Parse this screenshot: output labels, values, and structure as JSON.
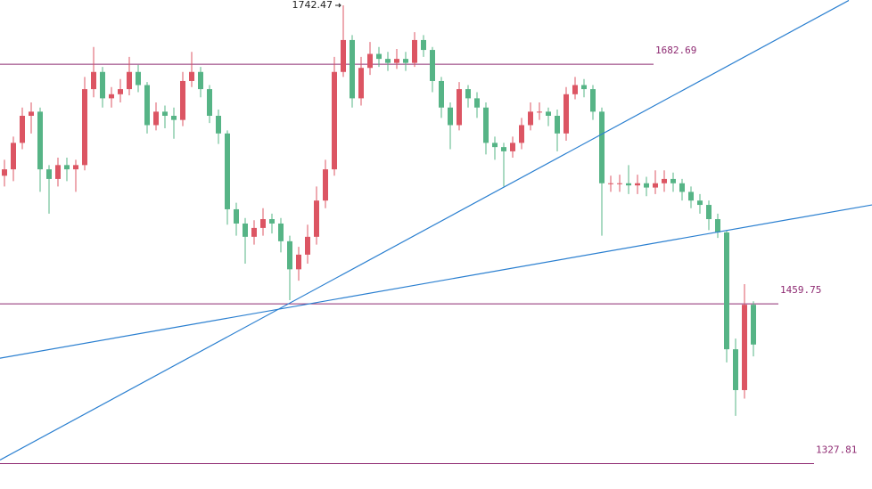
{
  "chart_data": {
    "type": "candlestick",
    "log_scale": true,
    "ylim": [
      1308,
      1748
    ],
    "up_color": "#dc5563",
    "down_color": "#56b486",
    "open": [
      1575,
      1581,
      1606,
      1632,
      1636,
      1581,
      1572,
      1585,
      1581,
      1585,
      1658,
      1675,
      1649,
      1653,
      1658,
      1675,
      1662,
      1623,
      1636,
      1632,
      1628,
      1666,
      1675,
      1658,
      1632,
      1615,
      1544,
      1531,
      1519,
      1527,
      1535,
      1531,
      1515,
      1490,
      1503,
      1519,
      1552,
      1581,
      1675,
      1707,
      1649,
      1679,
      1693,
      1688,
      1684,
      1688,
      1684,
      1707,
      1697,
      1666,
      1640,
      1623,
      1658,
      1649,
      1640,
      1606,
      1602,
      1598,
      1606,
      1623,
      1636,
      1636,
      1632,
      1615,
      1653,
      1662,
      1658,
      1636,
      1568,
      1568,
      1568,
      1566,
      1568,
      1564,
      1568,
      1572,
      1568,
      1560,
      1552,
      1548,
      1535,
      1523,
      1421,
      1387,
      1459
    ],
    "high": [
      1590,
      1612,
      1640,
      1645,
      1640,
      1585,
      1592,
      1592,
      1590,
      1670,
      1700,
      1680,
      1660,
      1668,
      1690,
      1682,
      1665,
      1645,
      1642,
      1640,
      1675,
      1695,
      1680,
      1662,
      1638,
      1618,
      1550,
      1536,
      1534,
      1545,
      1540,
      1536,
      1520,
      1510,
      1530,
      1565,
      1590,
      1690,
      1742.47,
      1712,
      1690,
      1705,
      1700,
      1695,
      1698,
      1695,
      1715,
      1712,
      1700,
      1670,
      1645,
      1665,
      1662,
      1655,
      1645,
      1612,
      1606,
      1612,
      1630,
      1645,
      1645,
      1640,
      1638,
      1660,
      1670,
      1668,
      1662,
      1640,
      1575,
      1576,
      1585,
      1576,
      1574,
      1580,
      1580,
      1578,
      1572,
      1565,
      1558,
      1552,
      1540,
      1525,
      1430,
      1477,
      1462
    ],
    "low": [
      1565,
      1570,
      1600,
      1615,
      1560,
      1540,
      1565,
      1570,
      1560,
      1580,
      1650,
      1640,
      1640,
      1645,
      1652,
      1655,
      1615,
      1618,
      1620,
      1610,
      1622,
      1660,
      1650,
      1625,
      1605,
      1530,
      1520,
      1495,
      1512,
      1520,
      1522,
      1505,
      1463,
      1480,
      1495,
      1512,
      1545,
      1575,
      1670,
      1640,
      1642,
      1672,
      1680,
      1676,
      1678,
      1676,
      1680,
      1690,
      1655,
      1630,
      1600,
      1618,
      1640,
      1630,
      1595,
      1590,
      1565,
      1592,
      1600,
      1618,
      1628,
      1622,
      1598,
      1608,
      1648,
      1650,
      1628,
      1520,
      1560,
      1560,
      1558,
      1558,
      1556,
      1558,
      1560,
      1560,
      1552,
      1545,
      1540,
      1525,
      1518,
      1410,
      1366,
      1380,
      1415
    ],
    "close": [
      1581,
      1606,
      1632,
      1636,
      1581,
      1572,
      1585,
      1581,
      1585,
      1658,
      1675,
      1649,
      1653,
      1658,
      1675,
      1662,
      1623,
      1636,
      1632,
      1628,
      1666,
      1675,
      1658,
      1632,
      1615,
      1544,
      1531,
      1519,
      1527,
      1535,
      1531,
      1515,
      1490,
      1503,
      1519,
      1552,
      1581,
      1675,
      1707,
      1649,
      1679,
      1693,
      1688,
      1684,
      1688,
      1684,
      1707,
      1697,
      1666,
      1640,
      1623,
      1658,
      1649,
      1640,
      1606,
      1602,
      1598,
      1606,
      1623,
      1636,
      1636,
      1632,
      1615,
      1653,
      1662,
      1658,
      1636,
      1568,
      1568,
      1568,
      1566,
      1568,
      1564,
      1568,
      1572,
      1568,
      1560,
      1552,
      1548,
      1535,
      1523,
      1421,
      1387,
      1459,
      1425
    ],
    "levels": [
      1682.69,
      1459.75,
      1327.81
    ],
    "level_color": "#8e2a72",
    "trendlines": [
      {
        "x": [
          -0.5,
          94.7
        ],
        "values": [
          1330.7,
          1747.6
        ],
        "color": "#2a7fd0"
      },
      {
        "x": [
          -0.5,
          97.3
        ],
        "values": [
          1413.5,
          1548
        ],
        "color": "#2a7fd0"
      }
    ]
  }
}
